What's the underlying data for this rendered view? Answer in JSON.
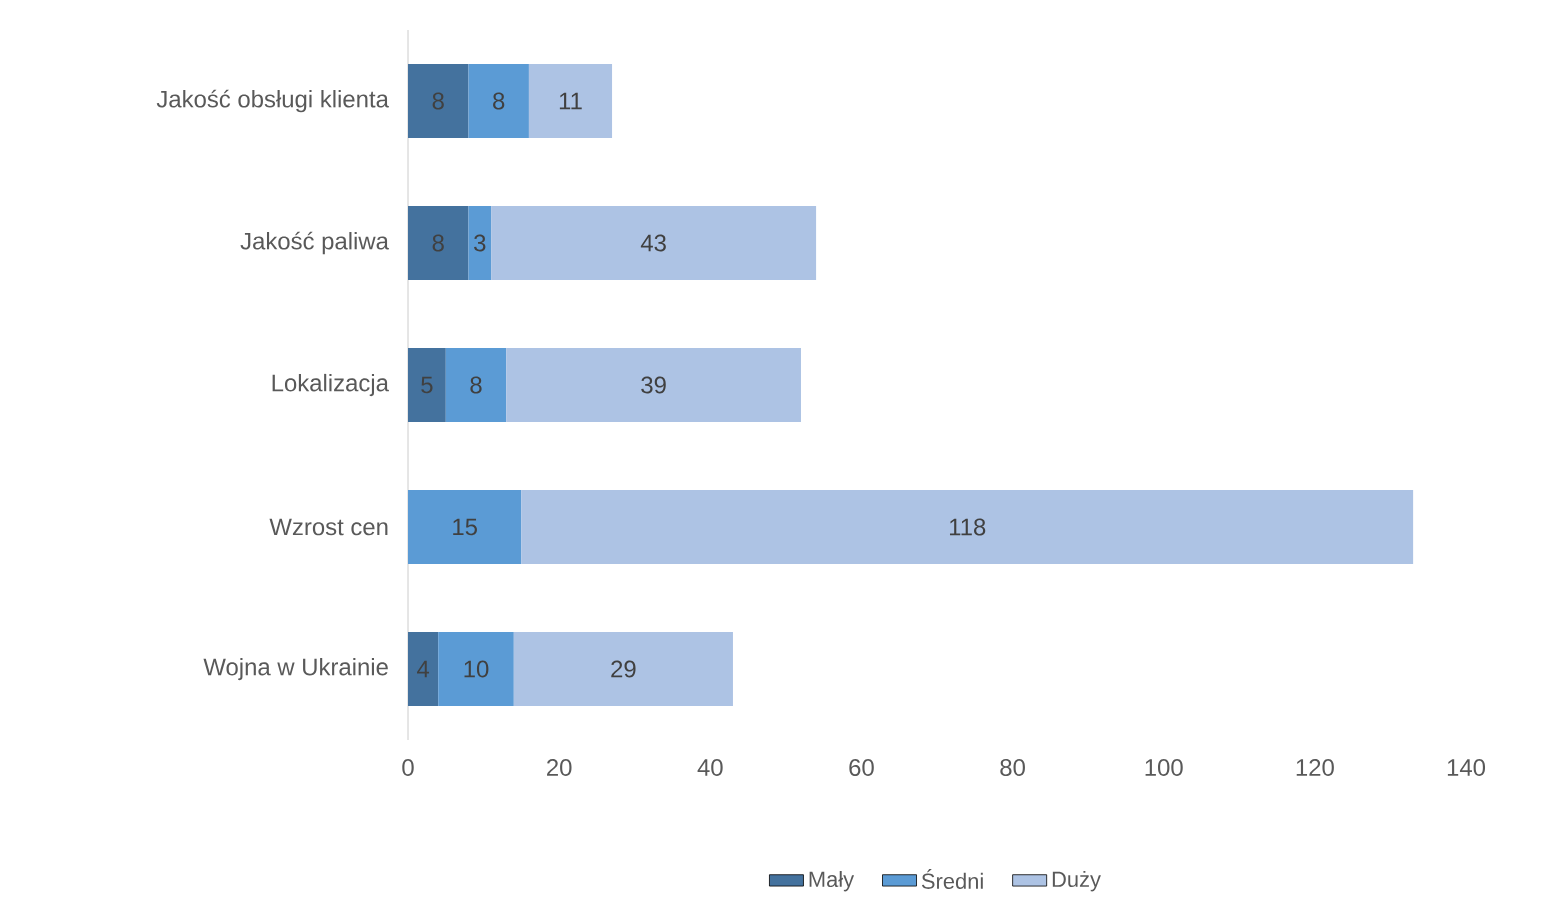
{
  "chart_data": {
    "type": "bar",
    "orientation": "horizontal",
    "stacked": true,
    "data_labels": true,
    "legend": "bottom",
    "grid": false,
    "categories": [
      "Jakość obsługi klienta",
      "Jakość paliwa",
      "Lokalizacja",
      "Wzrost cen",
      "Wojna w Ukrainie"
    ],
    "xlim": [
      0,
      140
    ],
    "xticks": [
      0,
      20,
      40,
      60,
      80,
      100,
      120,
      140
    ],
    "series": [
      {
        "name": "Mały",
        "color": "#44729e",
        "values": [
          8,
          8,
          5,
          null,
          4
        ]
      },
      {
        "name": "Średni",
        "color": "#5b9bd5",
        "values": [
          8,
          3,
          8,
          15,
          10
        ]
      },
      {
        "name": "Duży",
        "color": "#adc3e4",
        "values": [
          11,
          43,
          39,
          118,
          29
        ]
      }
    ]
  }
}
